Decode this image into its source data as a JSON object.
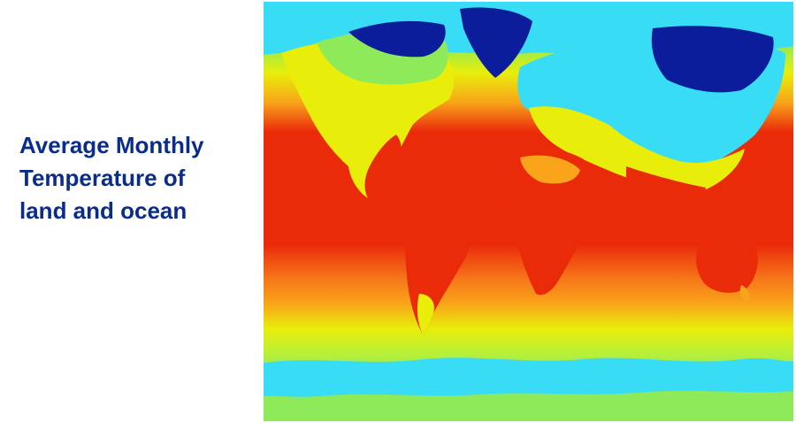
{
  "title": {
    "line1": "Average Monthly",
    "line2": "Temperature of",
    "line3": "land and ocean"
  },
  "map": {
    "projection": "equirectangular world map",
    "palette": {
      "coldest": "#0b1d9b",
      "cold": "#38dcf5",
      "cool": "#8eea58",
      "mild": "#e8ee0a",
      "warm": "#f9a41a",
      "hot": "#ea2b0a"
    }
  }
}
